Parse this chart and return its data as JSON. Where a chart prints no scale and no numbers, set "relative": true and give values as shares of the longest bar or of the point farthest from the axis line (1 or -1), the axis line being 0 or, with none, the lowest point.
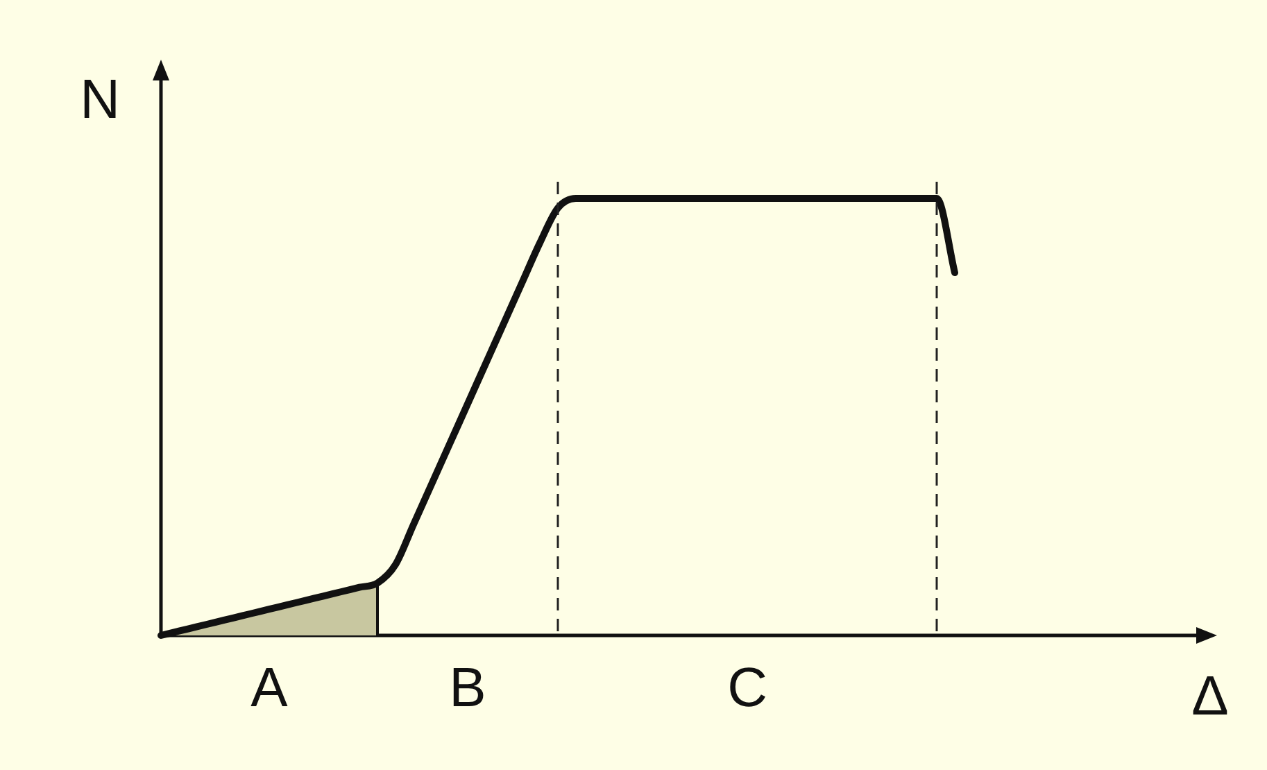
{
  "chart_data": {
    "type": "line",
    "relative": true,
    "xlabel": "Δ",
    "ylabel": "N",
    "categories": [
      null,
      null,
      null,
      null,
      null,
      null,
      null,
      null,
      null,
      null,
      null,
      null,
      null,
      null,
      null,
      null,
      null,
      null,
      null,
      null,
      null,
      null,
      null,
      null,
      null,
      null,
      null,
      null,
      null,
      null,
      null,
      null,
      null,
      null,
      null,
      null,
      null,
      null,
      null,
      null,
      null,
      null,
      null,
      null,
      null,
      null,
      null,
      null,
      null,
      null,
      null,
      null,
      null,
      null,
      null,
      null,
      null,
      null,
      null
    ],
    "series": [
      {
        "type": "area",
        "color": "#c8c7a0",
        "values": [
          0,
          0.01,
          0.02,
          0.03,
          0.04,
          0.05,
          0.06,
          0.07,
          0.08,
          0.09,
          0.1,
          0.11,
          0.12,
          null,
          null,
          null,
          null,
          null,
          null,
          null,
          null,
          null,
          null,
          null,
          null,
          null,
          null,
          null,
          null,
          null,
          null,
          null,
          null,
          null,
          null,
          null,
          null,
          null,
          null,
          null,
          null,
          null,
          null,
          null,
          null,
          null,
          null,
          null,
          null,
          null,
          null,
          null,
          null,
          null,
          null,
          null,
          null,
          null,
          null
        ]
      },
      {
        "color": "#111111",
        "values": [
          0,
          0.01,
          0.02,
          0.03,
          0.04,
          0.05,
          0.06,
          0.07,
          0.08,
          0.09,
          0.1,
          0.11,
          0.12,
          0.162,
          0.254,
          0.346,
          0.438,
          0.53,
          0.622,
          0.714,
          0.806,
          0.898,
          0.978,
          1,
          1,
          1,
          1,
          1,
          1,
          1,
          1,
          1,
          1,
          1,
          1,
          1,
          1,
          1,
          1,
          1,
          1,
          1,
          1,
          1,
          0.83,
          null,
          null,
          null,
          null,
          null,
          null,
          null,
          null,
          null,
          null,
          null,
          null,
          null,
          null
        ]
      }
    ],
    "annotations": [
      "A",
      "B",
      "C"
    ]
  }
}
